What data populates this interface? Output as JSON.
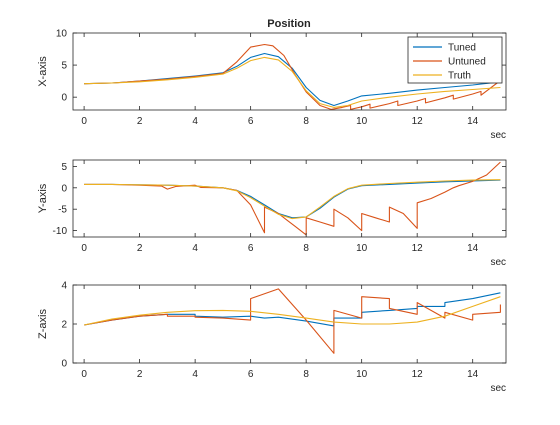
{
  "figure": {
    "title": "Position"
  },
  "colors": {
    "tuned": "#0072BD",
    "untuned": "#D95319",
    "truth": "#EDB120",
    "axis": "#262626"
  },
  "chart_data": [
    {
      "type": "line",
      "title": "Position",
      "xlabel": "sec",
      "ylabel": "X-axis",
      "xlim": [
        -0.4,
        15.2
      ],
      "ylim": [
        -2,
        10
      ],
      "xticks": [
        0,
        2,
        4,
        6,
        8,
        10,
        12,
        14
      ],
      "yticks": [
        0,
        5,
        10
      ],
      "grid": false,
      "legend": {
        "placement": "top-right",
        "entries": [
          "Tuned",
          "Untuned",
          "Truth"
        ]
      },
      "series": [
        {
          "name": "Tuned",
          "color": "#0072BD",
          "x": [
            0,
            1,
            2,
            3,
            4,
            5,
            5.5,
            6,
            6.5,
            7,
            7.5,
            8,
            8.5,
            9,
            9.5,
            10,
            11,
            12,
            13,
            14,
            15
          ],
          "y": [
            2.1,
            2.2,
            2.5,
            2.9,
            3.3,
            3.8,
            4.8,
            6.2,
            6.8,
            6.3,
            4.5,
            1.5,
            -0.5,
            -1.3,
            -0.6,
            0.2,
            0.6,
            1.1,
            1.5,
            1.9,
            2.4
          ]
        },
        {
          "name": "Untuned",
          "color": "#D95319",
          "x": [
            0,
            1,
            2,
            3,
            4,
            5,
            5.5,
            6,
            6.5,
            6.8,
            7.2,
            7.6,
            8,
            8.5,
            8.9,
            9.3,
            9.6,
            9.6,
            10,
            10.3,
            10.3,
            11,
            11.3,
            11.3,
            12,
            12.3,
            12.3,
            13,
            13.3,
            13.3,
            14,
            14.3,
            14.3,
            15
          ],
          "y": [
            2.1,
            2.2,
            2.5,
            2.8,
            3.2,
            3.7,
            5.5,
            7.8,
            8.2,
            8.0,
            6.5,
            3.5,
            0.8,
            -1.3,
            -1.9,
            -1.6,
            -1.3,
            -1.9,
            -1.5,
            -1.1,
            -1.7,
            -1.0,
            -0.6,
            -1.3,
            -0.6,
            -0.2,
            -0.9,
            -0.1,
            0.3,
            -0.3,
            0.5,
            0.9,
            0.3,
            2.6
          ]
        },
        {
          "name": "Truth",
          "color": "#EDB120",
          "x": [
            0,
            1,
            2,
            3,
            4,
            5,
            5.5,
            6,
            6.5,
            7,
            7.5,
            8,
            8.5,
            9,
            9.5,
            10,
            11,
            12,
            13,
            14,
            15
          ],
          "y": [
            2.1,
            2.2,
            2.4,
            2.7,
            3.1,
            3.6,
            4.5,
            5.7,
            6.2,
            5.8,
            4.0,
            1.0,
            -1.0,
            -1.6,
            -1.3,
            -0.6,
            0.0,
            0.5,
            0.9,
            1.2,
            1.5
          ]
        }
      ]
    },
    {
      "type": "line",
      "title": "",
      "xlabel": "sec",
      "ylabel": "Y-axis",
      "xlim": [
        -0.4,
        15.2
      ],
      "ylim": [
        -11.5,
        6.5
      ],
      "xticks": [
        0,
        2,
        4,
        6,
        8,
        10,
        12,
        14
      ],
      "yticks": [
        -10,
        -5,
        0,
        5
      ],
      "grid": false,
      "series": [
        {
          "name": "Tuned",
          "color": "#0072BD",
          "x": [
            0,
            1,
            2,
            3,
            4,
            5,
            5.5,
            6,
            6.5,
            7,
            7.5,
            8,
            8.5,
            9,
            9.5,
            10,
            11,
            12,
            13,
            14,
            15
          ],
          "y": [
            0.8,
            0.8,
            0.7,
            0.6,
            0.4,
            0.0,
            -0.6,
            -2.0,
            -4.0,
            -6.0,
            -7.0,
            -6.8,
            -4.8,
            -2.2,
            -0.3,
            0.5,
            0.8,
            1.1,
            1.4,
            1.6,
            1.8
          ]
        },
        {
          "name": "Untuned",
          "color": "#D95319",
          "x": [
            0,
            1,
            2,
            2.8,
            3.0,
            3.3,
            4.0,
            4.2,
            5.0,
            5.5,
            6.0,
            6.5,
            6.5,
            7.0,
            7.3,
            7.6,
            8.0,
            8.0,
            8.5,
            9.0,
            9.0,
            9.5,
            10.0,
            10.0,
            10.5,
            11.0,
            11.0,
            11.5,
            12.0,
            12.0,
            12.5,
            13.0,
            13.3,
            13.5,
            14.0,
            14.5,
            15.0
          ],
          "y": [
            0.8,
            0.8,
            0.6,
            0.4,
            -0.3,
            0.3,
            0.6,
            0.1,
            0.0,
            -0.6,
            -4.0,
            -10.5,
            -4.5,
            -6.0,
            -7.5,
            -9.0,
            -11.0,
            -7.0,
            -8.0,
            -9.0,
            -5.0,
            -7.0,
            -10.0,
            -6.0,
            -7.0,
            -8.0,
            -4.5,
            -6.0,
            -9.5,
            -3.5,
            -2.5,
            -1.0,
            0.0,
            0.5,
            1.5,
            3.0,
            6.0
          ]
        },
        {
          "name": "Truth",
          "color": "#EDB120",
          "x": [
            0,
            1,
            2,
            3,
            4,
            5,
            5.5,
            6,
            6.5,
            7,
            7.5,
            8,
            8.5,
            9,
            9.5,
            10,
            11,
            12,
            13,
            14,
            15
          ],
          "y": [
            0.8,
            0.8,
            0.7,
            0.6,
            0.4,
            0.0,
            -0.7,
            -2.3,
            -4.3,
            -6.2,
            -7.2,
            -6.8,
            -4.5,
            -2.0,
            -0.2,
            0.6,
            1.0,
            1.3,
            1.6,
            1.8,
            1.9
          ]
        }
      ]
    },
    {
      "type": "line",
      "title": "",
      "xlabel": "sec",
      "ylabel": "Z-axis",
      "xlim": [
        -0.4,
        15.2
      ],
      "ylim": [
        0,
        4
      ],
      "xticks": [
        0,
        2,
        4,
        6,
        8,
        10,
        12,
        14
      ],
      "yticks": [
        0,
        2,
        4
      ],
      "grid": false,
      "series": [
        {
          "name": "Tuned",
          "color": "#0072BD",
          "x": [
            0,
            1,
            2,
            3,
            4,
            4.0,
            5,
            6,
            6.5,
            7,
            8,
            9,
            9.0,
            10,
            10.0,
            11,
            12,
            12.0,
            13,
            13.0,
            14,
            15
          ],
          "y": [
            1.95,
            2.2,
            2.4,
            2.5,
            2.5,
            2.4,
            2.35,
            2.4,
            2.3,
            2.35,
            2.15,
            1.9,
            2.3,
            2.3,
            2.6,
            2.7,
            2.8,
            2.9,
            2.9,
            3.1,
            3.3,
            3.6
          ]
        },
        {
          "name": "Untuned",
          "color": "#D95319",
          "x": [
            0,
            1,
            2,
            3,
            3.0,
            4,
            4.0,
            5,
            6,
            6.0,
            7,
            8,
            9,
            9.0,
            10,
            10.0,
            11,
            11.0,
            12,
            12.0,
            13,
            13.0,
            14,
            14.0,
            15,
            15.0
          ],
          "y": [
            1.95,
            2.2,
            2.4,
            2.5,
            2.4,
            2.4,
            2.35,
            2.3,
            2.2,
            3.3,
            3.8,
            2.2,
            0.5,
            2.7,
            2.3,
            3.4,
            3.3,
            2.8,
            2.5,
            3.1,
            2.3,
            2.6,
            2.2,
            2.5,
            2.6,
            3.0
          ]
        },
        {
          "name": "Truth",
          "color": "#EDB120",
          "x": [
            0,
            1,
            2,
            3,
            4,
            5,
            6,
            7,
            8,
            9,
            10,
            11,
            12,
            13,
            14,
            15
          ],
          "y": [
            1.95,
            2.25,
            2.45,
            2.6,
            2.68,
            2.7,
            2.65,
            2.5,
            2.3,
            2.1,
            2.0,
            2.0,
            2.1,
            2.4,
            2.9,
            3.4
          ]
        }
      ]
    }
  ]
}
